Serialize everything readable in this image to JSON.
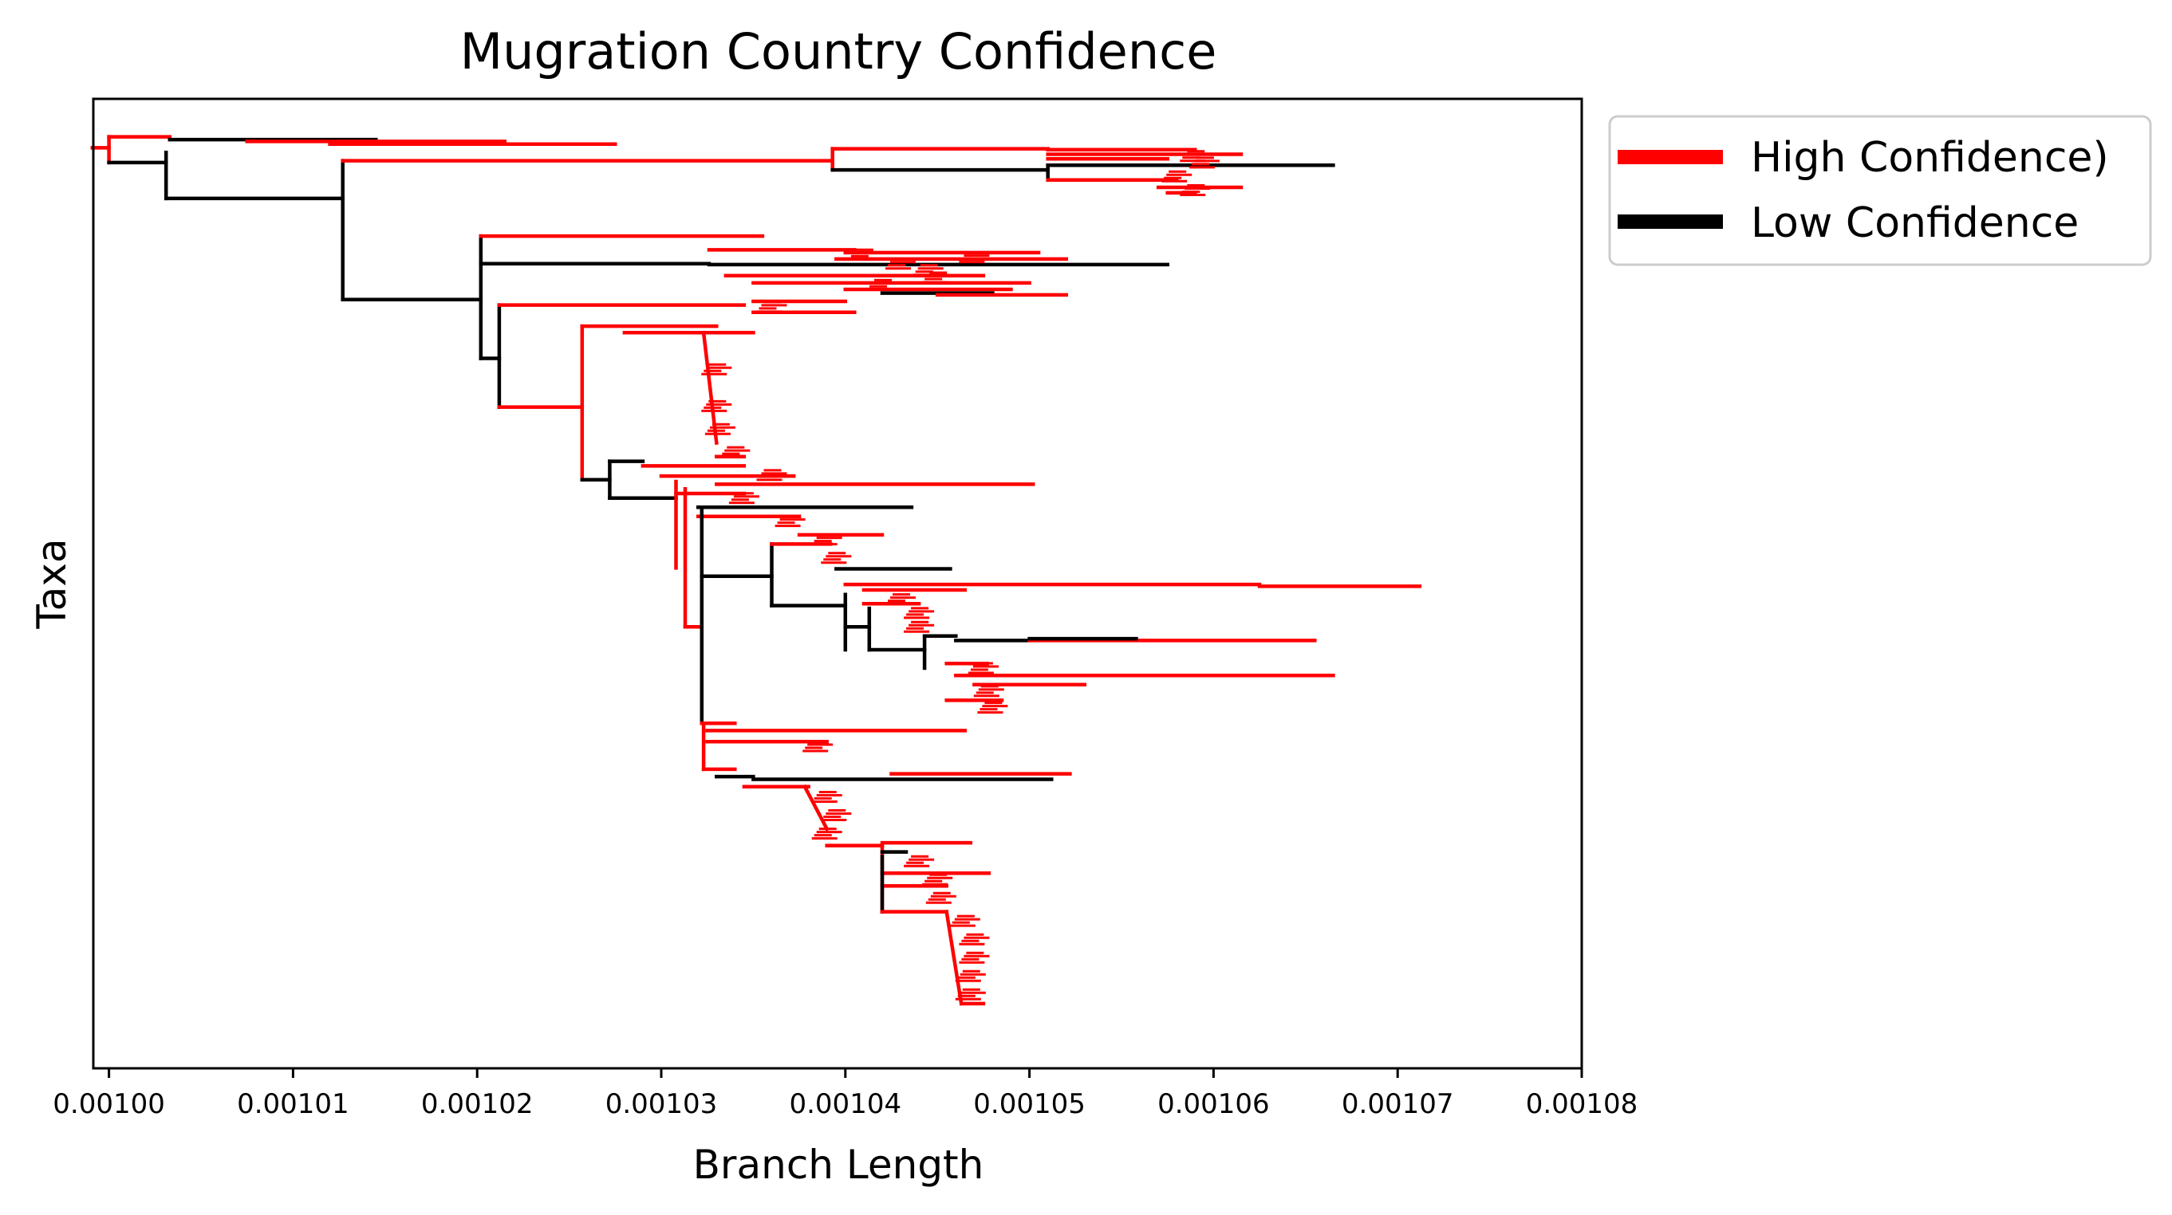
{
  "chart_data": {
    "type": "tree",
    "title": "Mugration Country Confidence",
    "xlabel": "Branch Length",
    "ylabel": "Taxa",
    "xlim": [
      0.00099915,
      0.00108
    ],
    "ylim": [
      0,
      100
    ],
    "xticks": [
      "0.00100",
      "0.00101",
      "0.00102",
      "0.00103",
      "0.00104",
      "0.00105",
      "0.00106",
      "0.00107",
      "0.00108"
    ],
    "xtick_values": [
      0.001,
      0.00101,
      0.00102,
      0.00103,
      0.00104,
      0.00105,
      0.00106,
      0.00107,
      0.00108
    ],
    "legend_position": "outside-upper-right",
    "grid": false,
    "series": [
      {
        "name": "High Confidence)",
        "color": "#ff0000"
      },
      {
        "name": "Low Confidence",
        "color": "#000000"
      }
    ],
    "segments": [
      {
        "c": "H",
        "x1": 0.0009991,
        "x2": 0.001,
        "y1": 2.9,
        "y2": 2.9
      },
      {
        "c": "H",
        "x1": 0.001,
        "x2": 0.001,
        "y1": 1.7,
        "y2": 4.5
      },
      {
        "c": "H",
        "x1": 0.001,
        "x2": 0.0010033,
        "y1": 1.7,
        "y2": 1.7
      },
      {
        "c": "L",
        "x1": 0.001,
        "x2": 0.0010031,
        "y1": 4.5,
        "y2": 4.5
      },
      {
        "c": "L",
        "x1": 0.0010033,
        "x2": 0.0010145,
        "y1": 2.0,
        "y2": 2.0
      },
      {
        "c": "H",
        "x1": 0.0010075,
        "x2": 0.0010215,
        "y1": 2.2,
        "y2": 2.2
      },
      {
        "c": "H",
        "x1": 0.001012,
        "x2": 0.0010275,
        "y1": 2.5,
        "y2": 2.5
      },
      {
        "c": "L",
        "x1": 0.0010031,
        "x2": 0.0010031,
        "y1": 3.4,
        "y2": 8.4
      },
      {
        "c": "L",
        "x1": 0.0010031,
        "x2": 0.0010127,
        "y1": 8.4,
        "y2": 8.4
      },
      {
        "c": "L",
        "x1": 0.0010127,
        "x2": 0.0010127,
        "y1": 4.3,
        "y2": 19.4
      },
      {
        "c": "H",
        "x1": 0.0010127,
        "x2": 0.0010393,
        "y1": 4.3,
        "y2": 4.3
      },
      {
        "c": "H",
        "x1": 0.0010393,
        "x2": 0.0010393,
        "y1": 3.0,
        "y2": 5.3
      },
      {
        "c": "H",
        "x1": 0.0010393,
        "x2": 0.001051,
        "y1": 3.0,
        "y2": 3.0
      },
      {
        "c": "L",
        "x1": 0.0010393,
        "x2": 0.001051,
        "y1": 5.3,
        "y2": 5.3
      },
      {
        "c": "H",
        "x1": 0.001051,
        "x2": 0.001059,
        "y1": 3.1,
        "y2": 3.1
      },
      {
        "c": "H",
        "x1": 0.001051,
        "x2": 0.0010615,
        "y1": 3.6,
        "y2": 3.6
      },
      {
        "c": "H",
        "x1": 0.001051,
        "x2": 0.0010575,
        "y1": 4.1,
        "y2": 4.1
      },
      {
        "c": "L",
        "x1": 0.001051,
        "x2": 0.001051,
        "y1": 4.8,
        "y2": 6.4
      },
      {
        "c": "L",
        "x1": 0.001051,
        "x2": 0.0010665,
        "y1": 4.8,
        "y2": 4.8
      },
      {
        "c": "H",
        "x1": 0.001051,
        "x2": 0.001058,
        "y1": 6.4,
        "y2": 6.4
      },
      {
        "c": "H",
        "x1": 0.001057,
        "x2": 0.0010615,
        "y1": 7.2,
        "y2": 7.2
      },
      {
        "c": "H",
        "x1": 0.0010575,
        "x2": 0.001059,
        "y1": 7.8,
        "y2": 7.8
      },
      {
        "c": "L",
        "x1": 0.0010127,
        "x2": 0.0010202,
        "y1": 19.4,
        "y2": 19.4
      },
      {
        "c": "L",
        "x1": 0.0010202,
        "x2": 0.0010202,
        "y1": 12.5,
        "y2": 25.8
      },
      {
        "c": "H",
        "x1": 0.0010202,
        "x2": 0.0010355,
        "y1": 12.5,
        "y2": 12.5
      },
      {
        "c": "L",
        "x1": 0.0010202,
        "x2": 0.0010326,
        "y1": 15.5,
        "y2": 15.5
      },
      {
        "c": "H",
        "x1": 0.0010326,
        "x2": 0.0010405,
        "y1": 14.0,
        "y2": 14.0
      },
      {
        "c": "L",
        "x1": 0.0010326,
        "x2": 0.0010575,
        "y1": 15.6,
        "y2": 15.6
      },
      {
        "c": "H",
        "x1": 0.0010335,
        "x2": 0.0010475,
        "y1": 16.8,
        "y2": 16.8
      },
      {
        "c": "H",
        "x1": 0.001035,
        "x2": 0.00105,
        "y1": 17.6,
        "y2": 17.6
      },
      {
        "c": "H",
        "x1": 0.0010395,
        "x2": 0.001052,
        "y1": 15.0,
        "y2": 15.0
      },
      {
        "c": "H",
        "x1": 0.00104,
        "x2": 0.0010505,
        "y1": 14.3,
        "y2": 14.3
      },
      {
        "c": "H",
        "x1": 0.00104,
        "x2": 0.001049,
        "y1": 18.3,
        "y2": 18.3
      },
      {
        "c": "L",
        "x1": 0.001042,
        "x2": 0.001048,
        "y1": 18.7,
        "y2": 18.7
      },
      {
        "c": "H",
        "x1": 0.001045,
        "x2": 0.001052,
        "y1": 18.9,
        "y2": 18.9
      },
      {
        "c": "L",
        "x1": 0.0010202,
        "x2": 0.0010212,
        "y1": 25.8,
        "y2": 25.8
      },
      {
        "c": "L",
        "x1": 0.0010212,
        "x2": 0.0010212,
        "y1": 20.0,
        "y2": 31.1
      },
      {
        "c": "H",
        "x1": 0.0010212,
        "x2": 0.0010345,
        "y1": 20.0,
        "y2": 20.0
      },
      {
        "c": "H",
        "x1": 0.001035,
        "x2": 0.00104,
        "y1": 19.6,
        "y2": 19.6
      },
      {
        "c": "H",
        "x1": 0.001035,
        "x2": 0.0010405,
        "y1": 20.8,
        "y2": 20.8
      },
      {
        "c": "H",
        "x1": 0.0010212,
        "x2": 0.0010257,
        "y1": 31.1,
        "y2": 31.1
      },
      {
        "c": "H",
        "x1": 0.0010257,
        "x2": 0.0010257,
        "y1": 22.3,
        "y2": 39.0
      },
      {
        "c": "H",
        "x1": 0.0010257,
        "x2": 0.001033,
        "y1": 22.3,
        "y2": 22.3
      },
      {
        "c": "H",
        "x1": 0.001028,
        "x2": 0.001035,
        "y1": 23.0,
        "y2": 23.0
      },
      {
        "c": "H",
        "x1": 0.0010323,
        "x2": 0.001033,
        "y1": 23.0,
        "y2": 35.0
      },
      {
        "c": "H",
        "x1": 0.001033,
        "x2": 0.0010345,
        "y1": 36.5,
        "y2": 36.5
      },
      {
        "c": "L",
        "x1": 0.0010257,
        "x2": 0.0010272,
        "y1": 39.0,
        "y2": 39.0
      },
      {
        "c": "L",
        "x1": 0.0010272,
        "x2": 0.0010272,
        "y1": 37.0,
        "y2": 41.0
      },
      {
        "c": "L",
        "x1": 0.0010272,
        "x2": 0.001029,
        "y1": 37.0,
        "y2": 37.0
      },
      {
        "c": "H",
        "x1": 0.001029,
        "x2": 0.0010345,
        "y1": 37.5,
        "y2": 37.5
      },
      {
        "c": "H",
        "x1": 0.00103,
        "x2": 0.0010372,
        "y1": 38.6,
        "y2": 38.6
      },
      {
        "c": "H",
        "x1": 0.001033,
        "x2": 0.0010502,
        "y1": 39.5,
        "y2": 39.5
      },
      {
        "c": "L",
        "x1": 0.0010272,
        "x2": 0.0010308,
        "y1": 41.0,
        "y2": 41.0
      },
      {
        "c": "H",
        "x1": 0.0010308,
        "x2": 0.0010308,
        "y1": 39.2,
        "y2": 48.6
      },
      {
        "c": "H",
        "x1": 0.0010308,
        "x2": 0.0010345,
        "y1": 40.5,
        "y2": 40.5
      },
      {
        "c": "L",
        "x1": 0.001032,
        "x2": 0.0010436,
        "y1": 42.0,
        "y2": 42.0
      },
      {
        "c": "H",
        "x1": 0.001032,
        "x2": 0.0010375,
        "y1": 43.0,
        "y2": 43.0
      },
      {
        "c": "H",
        "x1": 0.0010313,
        "x2": 0.0010313,
        "y1": 40.0,
        "y2": 55.0
      },
      {
        "c": "H",
        "x1": 0.0010313,
        "x2": 0.0010322,
        "y1": 55.0,
        "y2": 55.0
      },
      {
        "c": "L",
        "x1": 0.0010322,
        "x2": 0.0010322,
        "y1": 42.0,
        "y2": 65.5
      },
      {
        "c": "L",
        "x1": 0.0010322,
        "x2": 0.001036,
        "y1": 49.5,
        "y2": 49.5
      },
      {
        "c": "L",
        "x1": 0.001036,
        "x2": 0.001036,
        "y1": 46.0,
        "y2": 52.7
      },
      {
        "c": "H",
        "x1": 0.001036,
        "x2": 0.0010392,
        "y1": 46.0,
        "y2": 46.0
      },
      {
        "c": "H",
        "x1": 0.0010375,
        "x2": 0.001042,
        "y1": 45.0,
        "y2": 45.0
      },
      {
        "c": "L",
        "x1": 0.0010395,
        "x2": 0.0010457,
        "y1": 48.7,
        "y2": 48.7
      },
      {
        "c": "H",
        "x1": 0.00104,
        "x2": 0.0010625,
        "y1": 50.4,
        "y2": 50.4
      },
      {
        "c": "H",
        "x1": 0.0010625,
        "x2": 0.0010712,
        "y1": 50.6,
        "y2": 50.6
      },
      {
        "c": "H",
        "x1": 0.001041,
        "x2": 0.0010465,
        "y1": 51.0,
        "y2": 51.0
      },
      {
        "c": "L",
        "x1": 0.001036,
        "x2": 0.00104,
        "y1": 52.7,
        "y2": 52.7
      },
      {
        "c": "L",
        "x1": 0.00104,
        "x2": 0.00104,
        "y1": 51.5,
        "y2": 57.5
      },
      {
        "c": "H",
        "x1": 0.001041,
        "x2": 0.001044,
        "y1": 52.5,
        "y2": 52.5
      },
      {
        "c": "L",
        "x1": 0.00104,
        "x2": 0.0010413,
        "y1": 55.0,
        "y2": 55.0
      },
      {
        "c": "L",
        "x1": 0.0010413,
        "x2": 0.0010413,
        "y1": 53.0,
        "y2": 57.5
      },
      {
        "c": "L",
        "x1": 0.0010413,
        "x2": 0.0010443,
        "y1": 57.5,
        "y2": 57.5
      },
      {
        "c": "L",
        "x1": 0.0010443,
        "x2": 0.0010443,
        "y1": 56.0,
        "y2": 59.5
      },
      {
        "c": "L",
        "x1": 0.0010443,
        "x2": 0.001046,
        "y1": 56.0,
        "y2": 56.0
      },
      {
        "c": "L",
        "x1": 0.001046,
        "x2": 0.00105,
        "y1": 56.5,
        "y2": 56.5
      },
      {
        "c": "H",
        "x1": 0.00105,
        "x2": 0.0010655,
        "y1": 56.5,
        "y2": 56.5
      },
      {
        "c": "L",
        "x1": 0.00105,
        "x2": 0.0010558,
        "y1": 56.3,
        "y2": 56.3
      },
      {
        "c": "H",
        "x1": 0.0010455,
        "x2": 0.0010477,
        "y1": 59.0,
        "y2": 59.0
      },
      {
        "c": "H",
        "x1": 0.001046,
        "x2": 0.0010665,
        "y1": 60.3,
        "y2": 60.3
      },
      {
        "c": "H",
        "x1": 0.001047,
        "x2": 0.001053,
        "y1": 61.3,
        "y2": 61.3
      },
      {
        "c": "H",
        "x1": 0.0010455,
        "x2": 0.0010485,
        "y1": 63.0,
        "y2": 63.0
      },
      {
        "c": "L",
        "x1": 0.0010322,
        "x2": 0.0010322,
        "y1": 65.5,
        "y2": 65.5
      },
      {
        "c": "H",
        "x1": 0.0010322,
        "x2": 0.001034,
        "y1": 65.5,
        "y2": 65.5
      },
      {
        "c": "H",
        "x1": 0.0010325,
        "x2": 0.0010465,
        "y1": 66.3,
        "y2": 66.3
      },
      {
        "c": "H",
        "x1": 0.0010325,
        "x2": 0.001039,
        "y1": 67.5,
        "y2": 67.5
      },
      {
        "c": "H",
        "x1": 0.0010323,
        "x2": 0.0010323,
        "y1": 65.5,
        "y2": 70.5
      },
      {
        "c": "H",
        "x1": 0.0010323,
        "x2": 0.001034,
        "y1": 70.5,
        "y2": 70.5
      },
      {
        "c": "L",
        "x1": 0.001033,
        "x2": 0.001035,
        "y1": 71.3,
        "y2": 71.3
      },
      {
        "c": "L",
        "x1": 0.001035,
        "x2": 0.0010512,
        "y1": 71.6,
        "y2": 71.6
      },
      {
        "c": "H",
        "x1": 0.0010425,
        "x2": 0.0010522,
        "y1": 71.0,
        "y2": 71.0
      },
      {
        "c": "H",
        "x1": 0.0010345,
        "x2": 0.001038,
        "y1": 72.4,
        "y2": 72.4
      },
      {
        "c": "H",
        "x1": 0.0010378,
        "x2": 0.001039,
        "y1": 72.4,
        "y2": 77.0
      },
      {
        "c": "H",
        "x1": 0.001039,
        "x2": 0.001042,
        "y1": 78.8,
        "y2": 78.8
      },
      {
        "c": "H",
        "x1": 0.001042,
        "x2": 0.001042,
        "y1": 78.8,
        "y2": 86.0
      },
      {
        "c": "H",
        "x1": 0.001042,
        "x2": 0.0010468,
        "y1": 78.5,
        "y2": 78.5
      },
      {
        "c": "L",
        "x1": 0.001042,
        "x2": 0.0010433,
        "y1": 79.5,
        "y2": 79.5
      },
      {
        "c": "H",
        "x1": 0.001042,
        "x2": 0.0010478,
        "y1": 81.8,
        "y2": 81.8
      },
      {
        "c": "H",
        "x1": 0.001042,
        "x2": 0.0010455,
        "y1": 83.2,
        "y2": 83.2
      },
      {
        "c": "L",
        "x1": 0.001042,
        "x2": 0.001042,
        "y1": 80.0,
        "y2": 86.0
      },
      {
        "c": "H",
        "x1": 0.001042,
        "x2": 0.0010455,
        "y1": 86.0,
        "y2": 86.0
      },
      {
        "c": "H",
        "x1": 0.0010455,
        "x2": 0.0010463,
        "y1": 86.0,
        "y2": 96.0
      },
      {
        "c": "H",
        "x1": 0.0010463,
        "x2": 0.0010475,
        "y1": 96.0,
        "y2": 96.0
      }
    ],
    "twigs": [
      {
        "x": 0.001059,
        "y": 3.8
      },
      {
        "x": 0.0010595,
        "y": 4.5
      },
      {
        "x": 0.001058,
        "y": 6.0
      },
      {
        "x": 0.001059,
        "y": 7.5
      },
      {
        "x": 0.001041,
        "y": 14.5
      },
      {
        "x": 0.001043,
        "y": 15.5
      },
      {
        "x": 0.0010445,
        "y": 16.2
      },
      {
        "x": 0.001045,
        "y": 17.0
      },
      {
        "x": 0.001042,
        "y": 17.8
      },
      {
        "x": 0.001047,
        "y": 14.8
      },
      {
        "x": 0.001036,
        "y": 20.2
      },
      {
        "x": 0.001033,
        "y": 27.0
      },
      {
        "x": 0.001033,
        "y": 31.0
      },
      {
        "x": 0.0010332,
        "y": 33.5
      },
      {
        "x": 0.001034,
        "y": 36.0
      },
      {
        "x": 0.001036,
        "y": 38.5
      },
      {
        "x": 0.0010345,
        "y": 41.0
      },
      {
        "x": 0.001037,
        "y": 43.5
      },
      {
        "x": 0.001039,
        "y": 45.5
      },
      {
        "x": 0.0010395,
        "y": 47.5
      },
      {
        "x": 0.001043,
        "y": 52.0
      },
      {
        "x": 0.001044,
        "y": 53.5
      },
      {
        "x": 0.001044,
        "y": 55.0
      },
      {
        "x": 0.0010475,
        "y": 59.5
      },
      {
        "x": 0.0010478,
        "y": 62.0
      },
      {
        "x": 0.001048,
        "y": 63.8
      },
      {
        "x": 0.0010385,
        "y": 68.0
      },
      {
        "x": 0.001039,
        "y": 73.5
      },
      {
        "x": 0.0010395,
        "y": 75.5
      },
      {
        "x": 0.001039,
        "y": 77.5
      },
      {
        "x": 0.001044,
        "y": 80.5
      },
      {
        "x": 0.001045,
        "y": 82.5
      },
      {
        "x": 0.0010452,
        "y": 84.5
      },
      {
        "x": 0.0010465,
        "y": 87.0
      },
      {
        "x": 0.001047,
        "y": 89.0
      },
      {
        "x": 0.001047,
        "y": 91.0
      },
      {
        "x": 0.0010468,
        "y": 93.0
      },
      {
        "x": 0.0010468,
        "y": 95.0
      }
    ]
  }
}
